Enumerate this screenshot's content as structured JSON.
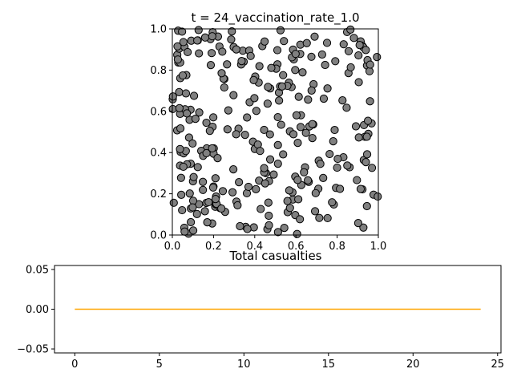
{
  "chart_data": [
    {
      "type": "scatter",
      "title": "t = 24_vaccination_rate_1.0",
      "xlabel": "",
      "ylabel": "",
      "xlim": [
        0,
        1
      ],
      "ylim": [
        0,
        1
      ],
      "xticks": [
        "0.0",
        "0.2",
        "0.4",
        "0.6",
        "0.8",
        "1.0"
      ],
      "yticks": [
        "0.0",
        "0.2",
        "0.4",
        "0.6",
        "0.8",
        "1.0"
      ],
      "grid": false,
      "marker_fill": "#808080",
      "marker_edge": "#000000",
      "n_points": 300
    },
    {
      "type": "line",
      "title": "Total casualties",
      "xlabel": "",
      "ylabel": "",
      "xlim": [
        -1.2,
        25.2
      ],
      "ylim": [
        -0.055,
        0.055
      ],
      "xticks": [
        "0",
        "5",
        "10",
        "15",
        "20",
        "25"
      ],
      "yticks": [
        "0.05",
        "0.00",
        "−0.05"
      ],
      "grid": false,
      "color": "#ffa500",
      "series": [
        {
          "x": [
            0,
            1,
            2,
            3,
            4,
            5,
            6,
            7,
            8,
            9,
            10,
            11,
            12,
            13,
            14,
            15,
            16,
            17,
            18,
            19,
            20,
            21,
            22,
            23,
            24
          ],
          "values": [
            0,
            0,
            0,
            0,
            0,
            0,
            0,
            0,
            0,
            0,
            0,
            0,
            0,
            0,
            0,
            0,
            0,
            0,
            0,
            0,
            0,
            0,
            0,
            0,
            0
          ]
        }
      ]
    }
  ]
}
